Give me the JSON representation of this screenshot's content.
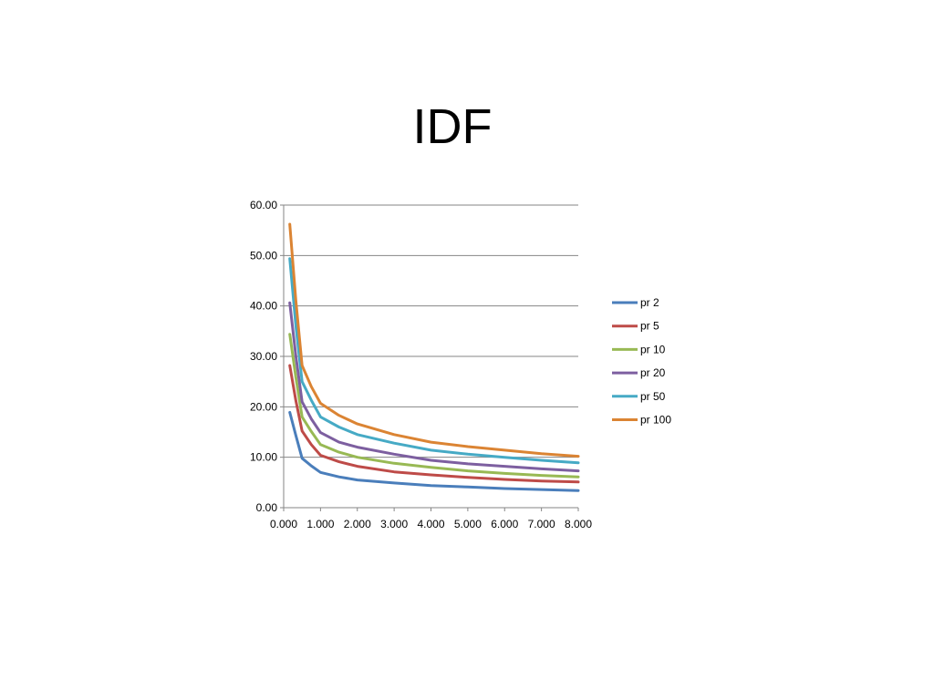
{
  "slide": {
    "title": "IDF"
  },
  "chart_data": {
    "type": "line",
    "title": "",
    "xlabel": "",
    "ylabel": "",
    "xlim": [
      0,
      8
    ],
    "ylim": [
      0,
      60
    ],
    "x_ticks": [
      0,
      1,
      2,
      3,
      4,
      5,
      6,
      7,
      8
    ],
    "x_tick_labels": [
      "0.000",
      "1.000",
      "2.000",
      "3.000",
      "4.000",
      "5.000",
      "6.000",
      "7.000",
      "8.000"
    ],
    "y_ticks": [
      0,
      10,
      20,
      30,
      40,
      50,
      60
    ],
    "y_tick_labels": [
      "0.00",
      "10.00",
      "20.00",
      "30.00",
      "40.00",
      "50.00",
      "60.00"
    ],
    "grid": "horizontal",
    "legend_position": "right",
    "x": [
      0.167,
      0.333,
      0.5,
      0.75,
      1,
      1.5,
      2,
      3,
      4,
      5,
      6,
      7,
      8
    ],
    "series": [
      {
        "name": "pr 2",
        "color": "#4A7EBB",
        "values": [
          18.9,
          14.3,
          9.8,
          8.3,
          7.0,
          6.1,
          5.5,
          4.9,
          4.4,
          4.1,
          3.8,
          3.6,
          3.4
        ]
      },
      {
        "name": "pr 5",
        "color": "#BE4B48",
        "values": [
          28.2,
          21.2,
          15.2,
          12.5,
          10.4,
          9.1,
          8.2,
          7.1,
          6.5,
          6.0,
          5.6,
          5.3,
          5.1
        ]
      },
      {
        "name": "pr 10",
        "color": "#98B954",
        "values": [
          34.4,
          25.8,
          18.0,
          15.1,
          12.5,
          11.0,
          10.0,
          8.8,
          8.0,
          7.3,
          6.8,
          6.4,
          6.1
        ]
      },
      {
        "name": "pr 20",
        "color": "#7D5FA0",
        "values": [
          40.6,
          30.0,
          21.0,
          17.6,
          14.9,
          13.0,
          12.0,
          10.6,
          9.4,
          8.7,
          8.2,
          7.7,
          7.3
        ]
      },
      {
        "name": "pr 50",
        "color": "#46AAC5",
        "values": [
          49.4,
          36.0,
          25.0,
          21.3,
          18.0,
          16.0,
          14.5,
          12.8,
          11.4,
          10.6,
          10.0,
          9.4,
          8.9
        ]
      },
      {
        "name": "pr 100",
        "color": "#DB8433",
        "values": [
          56.2,
          41.0,
          28.2,
          24.0,
          20.7,
          18.3,
          16.6,
          14.5,
          13.0,
          12.1,
          11.4,
          10.7,
          10.2
        ]
      }
    ],
    "axis_color": "#868686",
    "grid_color": "#868686"
  }
}
